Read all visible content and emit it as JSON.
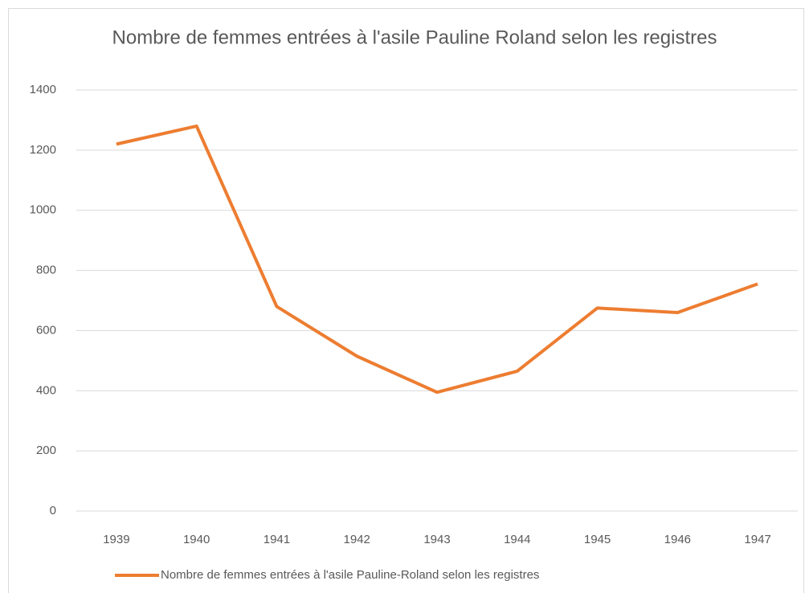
{
  "chart_data": {
    "type": "line",
    "title": "Nombre  de femmes entrées à l'asile Pauline Roland selon les registres",
    "categories": [
      "1939",
      "1940",
      "1941",
      "1942",
      "1943",
      "1944",
      "1945",
      "1946",
      "1947"
    ],
    "series": [
      {
        "name": "Nombre de femmes entrées à l'asile Pauline-Roland selon les registres",
        "color": "#ED7D31",
        "values": [
          1220,
          1280,
          680,
          515,
          395,
          465,
          675,
          660,
          755
        ]
      }
    ],
    "ylim": [
      0,
      1400
    ],
    "yticks": [
      0,
      200,
      400,
      600,
      800,
      1000,
      1200,
      1400
    ],
    "grid": true,
    "legend": "bottom"
  }
}
